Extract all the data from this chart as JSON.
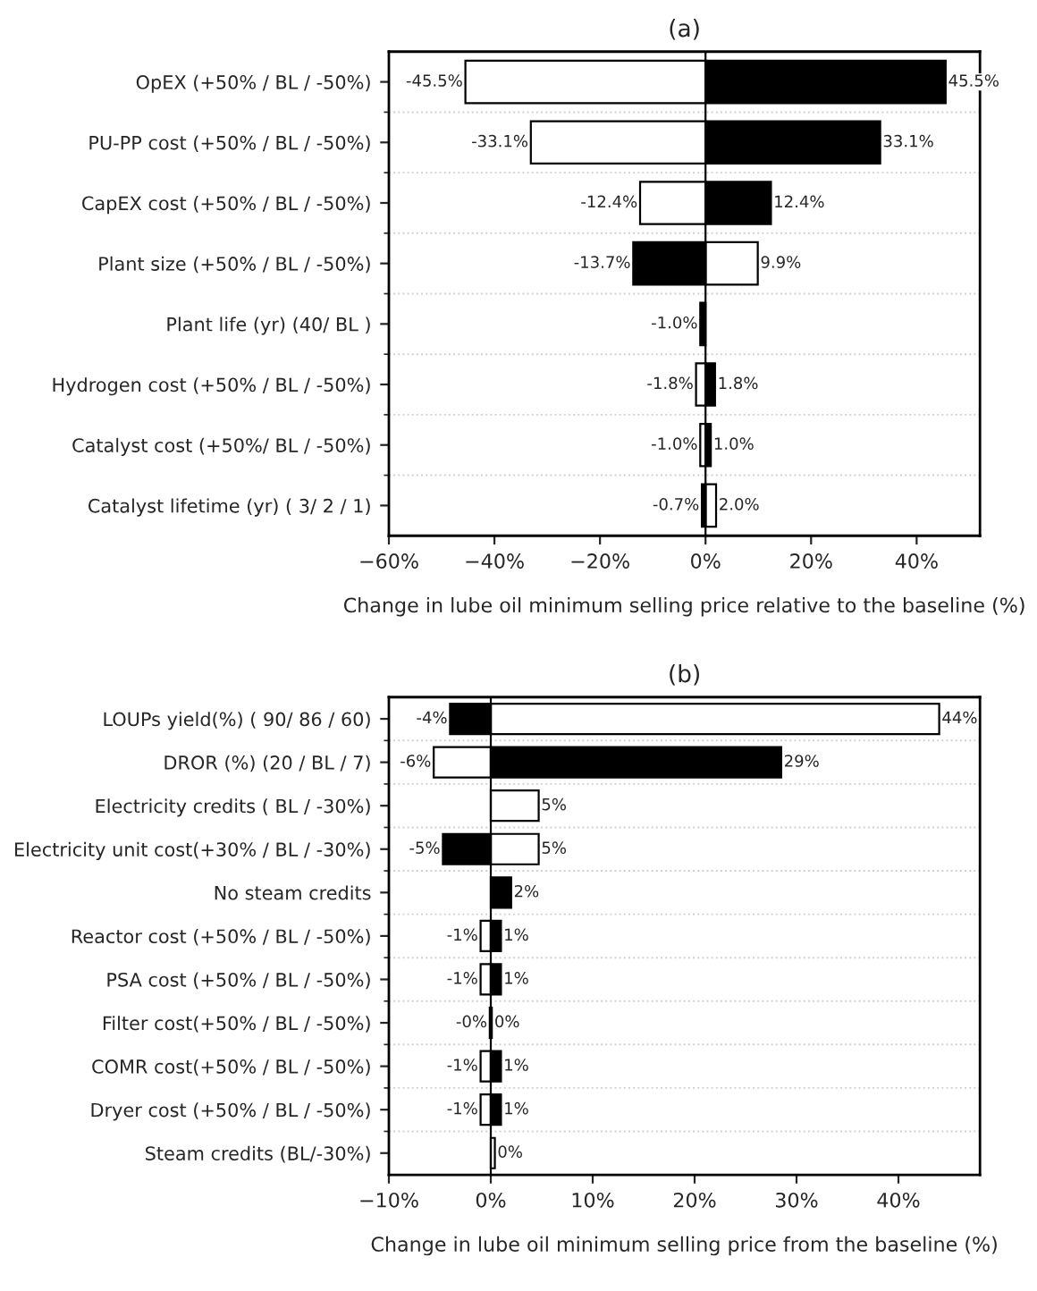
{
  "chart_data": [
    {
      "type": "bar",
      "orientation": "horizontal",
      "stacked": true,
      "title": "(a)",
      "xlabel": "Change in lube oil minimum selling price relative to the baseline (%)",
      "categories": [
        "OpEX (+50% / BL / -50%)",
        "PU-PP cost (+50% / BL / -50%)",
        "CapEX cost (+50% / BL / -50%)",
        "Plant size (+50% / BL / -50%)",
        "Plant life (yr) (40/ BL )",
        "Hydrogen cost (+50% / BL / -50%)",
        "Catalyst cost (+50%/ BL / -50%)",
        "Catalyst lifetime (yr) ( 3/ 2 / 1)"
      ],
      "series": [
        {
          "color": "#ffffff",
          "values": [
            -45.5,
            -33.1,
            -12.4,
            9.9,
            null,
            -1.8,
            -1.0,
            2.0
          ],
          "value_labels": [
            "-45.5%",
            "-33.1%",
            "-12.4%",
            "9.9%",
            null,
            "-1.8%",
            "-1.0%",
            "2.0%"
          ]
        },
        {
          "color": "#000000",
          "values": [
            45.5,
            33.1,
            12.4,
            -13.7,
            -1.0,
            1.8,
            1.0,
            -0.7
          ],
          "value_labels": [
            "45.5%",
            "33.1%",
            "12.4%",
            "-13.7%",
            "-1.0%",
            "1.8%",
            "1.0%",
            "-0.7%"
          ]
        }
      ],
      "xlim": [
        -60,
        52
      ],
      "xticks": [
        {
          "value": -60,
          "label": "−60%"
        },
        {
          "value": -40,
          "label": "−40%"
        },
        {
          "value": -20,
          "label": "−20%"
        },
        {
          "value": 0,
          "label": "0%"
        },
        {
          "value": 20,
          "label": "20%"
        },
        {
          "value": 40,
          "label": "40%"
        }
      ],
      "ref_lines": [
        {
          "axis": "x",
          "value": 0,
          "color": "#000000"
        }
      ],
      "grid": "y",
      "legend": false
    },
    {
      "type": "bar",
      "orientation": "horizontal",
      "stacked": true,
      "title": "(b)",
      "xlabel": "Change in lube oil minimum selling price from the baseline (%)",
      "categories": [
        "LOUPs yield(%) ( 90/ 86 / 60)",
        "DROR (%) (20 / BL / 7)",
        "Electricity credits ( BL / -30%)",
        "Electricity unit cost(+30% / BL / -30%)",
        "No steam credits",
        "Reactor cost (+50% / BL / -50%)",
        "PSA cost (+50% / BL / -50%)",
        "Filter cost(+50% / BL / -50%)",
        "COMR cost(+50% / BL / -50%)",
        "Dryer cost (+50% / BL / -50%)",
        "Steam credits (BL/-30%)"
      ],
      "series": [
        {
          "color": "#ffffff",
          "values": [
            44,
            -5.6,
            4.7,
            4.7,
            null,
            -1.0,
            -1.0,
            -0.1,
            -1.0,
            -1.0,
            0.4
          ],
          "value_labels": [
            "44%",
            "-6%",
            "5%",
            "5%",
            null,
            "-1%",
            "-1%",
            "-0%",
            "-1%",
            "-1%",
            "0%"
          ]
        },
        {
          "color": "#000000",
          "values": [
            -4,
            28.5,
            null,
            -4.7,
            2.0,
            1.0,
            1.0,
            0.1,
            1.0,
            1.0,
            null
          ],
          "value_labels": [
            "-4%",
            "29%",
            null,
            "-5%",
            "2%",
            "1%",
            "1%",
            "0%",
            "1%",
            "1%",
            null
          ]
        }
      ],
      "xlim": [
        -10,
        48
      ],
      "xticks": [
        {
          "value": -10,
          "label": "−10%"
        },
        {
          "value": 0,
          "label": "0%"
        },
        {
          "value": 10,
          "label": "10%"
        },
        {
          "value": 20,
          "label": "20%"
        },
        {
          "value": 30,
          "label": "30%"
        },
        {
          "value": 40,
          "label": "40%"
        }
      ],
      "ref_lines": [
        {
          "axis": "x",
          "value": 0,
          "color": "#000000"
        }
      ],
      "grid": "y",
      "legend": false
    }
  ]
}
